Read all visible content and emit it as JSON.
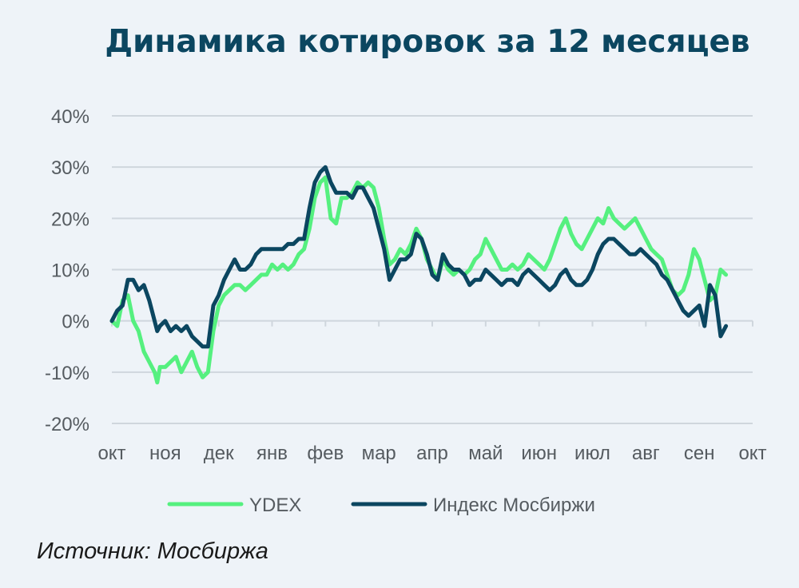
{
  "chart_data": {
    "type": "line",
    "title": "Динамика котировок за 12 месяцев",
    "source": "Источник: Мосбиржа",
    "x_ticks": [
      "окт",
      "ноя",
      "дек",
      "янв",
      "фев",
      "мар",
      "апр",
      "май",
      "июн",
      "июл",
      "авг",
      "сен",
      "окт"
    ],
    "y_ticks": [
      "40%",
      "30%",
      "20%",
      "10%",
      "0%",
      "-10%",
      "-20%"
    ],
    "ylim": [
      -20,
      40
    ],
    "xlim": [
      0,
      12
    ],
    "grid": true,
    "legend_position": "bottom",
    "series": [
      {
        "name": "YDEX",
        "color": "#55f07f",
        "points": [
          [
            0.0,
            0
          ],
          [
            0.1,
            -1
          ],
          [
            0.2,
            4
          ],
          [
            0.3,
            5
          ],
          [
            0.4,
            0
          ],
          [
            0.5,
            -2
          ],
          [
            0.6,
            -6
          ],
          [
            0.7,
            -8
          ],
          [
            0.8,
            -10
          ],
          [
            0.85,
            -12
          ],
          [
            0.9,
            -9
          ],
          [
            1.0,
            -9
          ],
          [
            1.1,
            -8
          ],
          [
            1.2,
            -7
          ],
          [
            1.3,
            -10
          ],
          [
            1.4,
            -8
          ],
          [
            1.5,
            -6
          ],
          [
            1.6,
            -9
          ],
          [
            1.7,
            -11
          ],
          [
            1.8,
            -10
          ],
          [
            1.9,
            -2
          ],
          [
            2.0,
            3
          ],
          [
            2.1,
            5
          ],
          [
            2.2,
            6
          ],
          [
            2.3,
            7
          ],
          [
            2.4,
            7
          ],
          [
            2.5,
            6
          ],
          [
            2.6,
            7
          ],
          [
            2.7,
            8
          ],
          [
            2.8,
            9
          ],
          [
            2.9,
            9
          ],
          [
            3.0,
            11
          ],
          [
            3.1,
            10
          ],
          [
            3.2,
            11
          ],
          [
            3.3,
            10
          ],
          [
            3.4,
            11
          ],
          [
            3.5,
            13
          ],
          [
            3.6,
            14
          ],
          [
            3.7,
            18
          ],
          [
            3.8,
            24
          ],
          [
            3.9,
            27
          ],
          [
            4.0,
            28
          ],
          [
            4.1,
            20
          ],
          [
            4.2,
            19
          ],
          [
            4.3,
            24
          ],
          [
            4.4,
            24
          ],
          [
            4.5,
            25
          ],
          [
            4.6,
            27
          ],
          [
            4.7,
            26
          ],
          [
            4.8,
            27
          ],
          [
            4.9,
            26
          ],
          [
            5.0,
            22
          ],
          [
            5.1,
            16
          ],
          [
            5.2,
            11
          ],
          [
            5.3,
            12
          ],
          [
            5.4,
            14
          ],
          [
            5.5,
            13
          ],
          [
            5.6,
            15
          ],
          [
            5.7,
            18
          ],
          [
            5.8,
            16
          ],
          [
            5.9,
            12
          ],
          [
            6.0,
            10
          ],
          [
            6.1,
            8
          ],
          [
            6.2,
            12
          ],
          [
            6.3,
            10
          ],
          [
            6.4,
            9
          ],
          [
            6.5,
            10
          ],
          [
            6.6,
            9
          ],
          [
            6.7,
            10
          ],
          [
            6.8,
            12
          ],
          [
            6.9,
            13
          ],
          [
            7.0,
            16
          ],
          [
            7.1,
            14
          ],
          [
            7.2,
            12
          ],
          [
            7.3,
            10
          ],
          [
            7.4,
            10
          ],
          [
            7.5,
            11
          ],
          [
            7.6,
            10
          ],
          [
            7.7,
            11
          ],
          [
            7.8,
            13
          ],
          [
            7.9,
            12
          ],
          [
            8.0,
            11
          ],
          [
            8.1,
            10
          ],
          [
            8.2,
            12
          ],
          [
            8.3,
            15
          ],
          [
            8.4,
            18
          ],
          [
            8.5,
            20
          ],
          [
            8.6,
            17
          ],
          [
            8.7,
            15
          ],
          [
            8.8,
            14
          ],
          [
            8.9,
            16
          ],
          [
            9.0,
            18
          ],
          [
            9.1,
            20
          ],
          [
            9.2,
            19
          ],
          [
            9.3,
            22
          ],
          [
            9.4,
            20
          ],
          [
            9.5,
            19
          ],
          [
            9.6,
            18
          ],
          [
            9.7,
            19
          ],
          [
            9.8,
            20
          ],
          [
            9.9,
            18
          ],
          [
            10.0,
            16
          ],
          [
            10.1,
            14
          ],
          [
            10.2,
            13
          ],
          [
            10.3,
            12
          ],
          [
            10.4,
            9
          ],
          [
            10.5,
            6
          ],
          [
            10.6,
            5
          ],
          [
            10.7,
            6
          ],
          [
            10.8,
            9
          ],
          [
            10.9,
            14
          ],
          [
            11.0,
            12
          ],
          [
            11.1,
            8
          ],
          [
            11.2,
            4
          ],
          [
            11.3,
            5
          ],
          [
            11.4,
            10
          ],
          [
            11.5,
            9
          ]
        ]
      },
      {
        "name": "Индекс Мосбиржи",
        "color": "#0b4660",
        "points": [
          [
            0.0,
            0
          ],
          [
            0.1,
            2
          ],
          [
            0.2,
            3
          ],
          [
            0.3,
            8
          ],
          [
            0.4,
            8
          ],
          [
            0.5,
            6
          ],
          [
            0.6,
            7
          ],
          [
            0.7,
            4
          ],
          [
            0.8,
            0
          ],
          [
            0.85,
            -2
          ],
          [
            0.9,
            -1
          ],
          [
            1.0,
            0
          ],
          [
            1.1,
            -2
          ],
          [
            1.2,
            -1
          ],
          [
            1.3,
            -2
          ],
          [
            1.4,
            -1
          ],
          [
            1.5,
            -3
          ],
          [
            1.6,
            -4
          ],
          [
            1.7,
            -5
          ],
          [
            1.8,
            -5
          ],
          [
            1.9,
            3
          ],
          [
            2.0,
            5
          ],
          [
            2.1,
            8
          ],
          [
            2.2,
            10
          ],
          [
            2.3,
            12
          ],
          [
            2.4,
            10
          ],
          [
            2.5,
            10
          ],
          [
            2.6,
            11
          ],
          [
            2.7,
            13
          ],
          [
            2.8,
            14
          ],
          [
            2.9,
            14
          ],
          [
            3.0,
            14
          ],
          [
            3.1,
            14
          ],
          [
            3.2,
            14
          ],
          [
            3.3,
            15
          ],
          [
            3.4,
            15
          ],
          [
            3.5,
            16
          ],
          [
            3.6,
            16
          ],
          [
            3.7,
            22
          ],
          [
            3.8,
            27
          ],
          [
            3.9,
            29
          ],
          [
            4.0,
            30
          ],
          [
            4.1,
            27
          ],
          [
            4.2,
            25
          ],
          [
            4.3,
            25
          ],
          [
            4.4,
            25
          ],
          [
            4.5,
            24
          ],
          [
            4.6,
            26
          ],
          [
            4.7,
            26
          ],
          [
            4.8,
            24
          ],
          [
            4.9,
            22
          ],
          [
            5.0,
            18
          ],
          [
            5.1,
            14
          ],
          [
            5.2,
            8
          ],
          [
            5.3,
            10
          ],
          [
            5.4,
            12
          ],
          [
            5.5,
            12
          ],
          [
            5.6,
            13
          ],
          [
            5.7,
            17
          ],
          [
            5.8,
            16
          ],
          [
            5.9,
            13
          ],
          [
            6.0,
            9
          ],
          [
            6.1,
            8
          ],
          [
            6.2,
            13
          ],
          [
            6.3,
            11
          ],
          [
            6.4,
            10
          ],
          [
            6.5,
            10
          ],
          [
            6.6,
            9
          ],
          [
            6.7,
            7
          ],
          [
            6.8,
            8
          ],
          [
            6.9,
            8
          ],
          [
            7.0,
            10
          ],
          [
            7.1,
            9
          ],
          [
            7.2,
            8
          ],
          [
            7.3,
            7
          ],
          [
            7.4,
            8
          ],
          [
            7.5,
            8
          ],
          [
            7.6,
            7
          ],
          [
            7.7,
            9
          ],
          [
            7.8,
            10
          ],
          [
            7.9,
            9
          ],
          [
            8.0,
            8
          ],
          [
            8.1,
            7
          ],
          [
            8.2,
            6
          ],
          [
            8.3,
            7
          ],
          [
            8.4,
            9
          ],
          [
            8.5,
            10
          ],
          [
            8.6,
            8
          ],
          [
            8.7,
            7
          ],
          [
            8.8,
            7
          ],
          [
            8.9,
            8
          ],
          [
            9.0,
            10
          ],
          [
            9.1,
            13
          ],
          [
            9.2,
            15
          ],
          [
            9.3,
            16
          ],
          [
            9.4,
            16
          ],
          [
            9.5,
            15
          ],
          [
            9.6,
            14
          ],
          [
            9.7,
            13
          ],
          [
            9.8,
            13
          ],
          [
            9.9,
            14
          ],
          [
            10.0,
            13
          ],
          [
            10.1,
            12
          ],
          [
            10.2,
            11
          ],
          [
            10.3,
            9
          ],
          [
            10.4,
            8
          ],
          [
            10.5,
            6
          ],
          [
            10.6,
            4
          ],
          [
            10.7,
            2
          ],
          [
            10.8,
            1
          ],
          [
            10.9,
            2
          ],
          [
            11.0,
            3
          ],
          [
            11.1,
            -1
          ],
          [
            11.2,
            7
          ],
          [
            11.3,
            5
          ],
          [
            11.4,
            -3
          ],
          [
            11.5,
            -1
          ]
        ]
      }
    ]
  }
}
